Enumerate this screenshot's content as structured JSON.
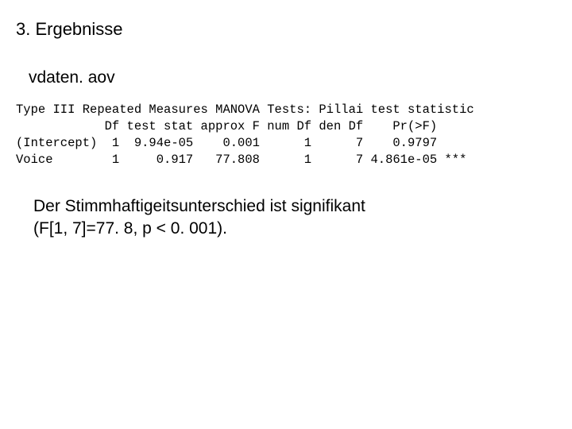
{
  "section_title": "3. Ergebnisse",
  "filename": "vdaten. aov",
  "manova": {
    "header_line": "Type III Repeated Measures MANOVA Tests: Pillai test statistic",
    "col_header": "            Df test stat approx F num Df den Df    Pr(>F)",
    "row_intercept": "(Intercept)  1  9.94e-05    0.001      1      7    0.9797",
    "row_voice": "Voice        1     0.917   77.808      1      7 4.861e-05 ***"
  },
  "conclusion_line1": "Der Stimmhaftigeitsunterschied ist signifikant",
  "conclusion_line2": "(F[1, 7]=77. 8, p < 0. 001)."
}
